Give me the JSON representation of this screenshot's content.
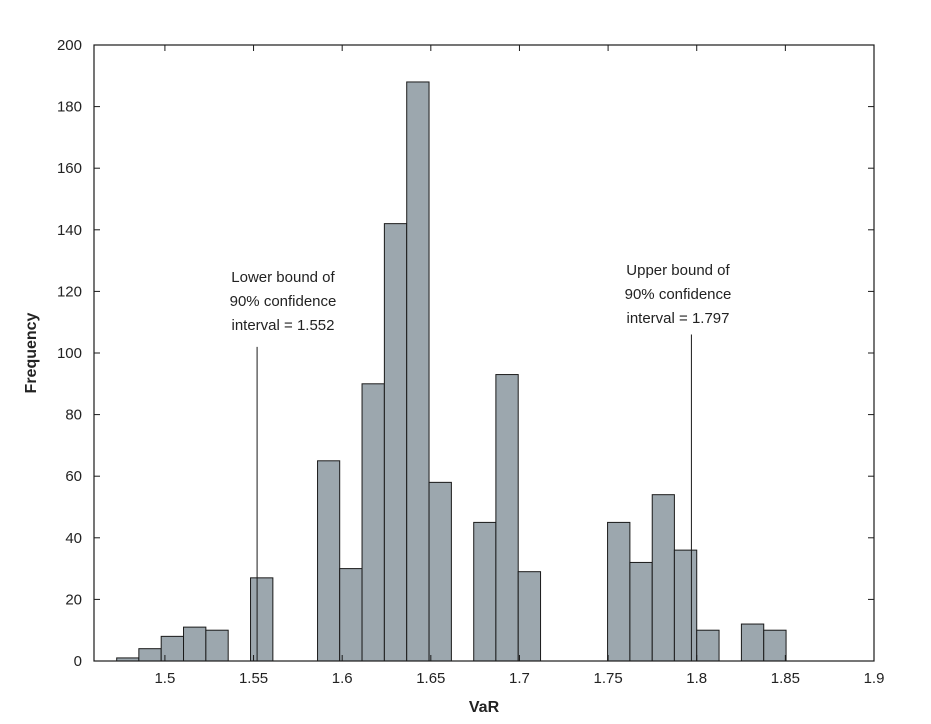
{
  "chart_data": {
    "type": "bar",
    "subtype": "histogram",
    "xlabel": "VaR",
    "ylabel": "Frequency",
    "xlim": [
      1.46,
      1.9
    ],
    "ylim": [
      0,
      200
    ],
    "xticks": [
      1.5,
      1.55,
      1.6,
      1.65,
      1.7,
      1.75,
      1.8,
      1.85,
      1.9
    ],
    "xtick_labels": [
      "1.5",
      "1.55",
      "1.6",
      "1.65",
      "1.7",
      "1.75",
      "1.8",
      "1.85",
      "1.9"
    ],
    "yticks": [
      0,
      20,
      40,
      60,
      80,
      100,
      120,
      140,
      160,
      180,
      200
    ],
    "ytick_labels": [
      "0",
      "20",
      "40",
      "60",
      "80",
      "100",
      "120",
      "140",
      "160",
      "180",
      "200"
    ],
    "bar_color": "#9ca7ae",
    "bins": [
      {
        "x0": 1.4728,
        "x1": 1.4853,
        "value": 1
      },
      {
        "x0": 1.4853,
        "x1": 1.4979,
        "value": 4
      },
      {
        "x0": 1.4979,
        "x1": 1.5105,
        "value": 8
      },
      {
        "x0": 1.5105,
        "x1": 1.5231,
        "value": 11
      },
      {
        "x0": 1.5231,
        "x1": 1.5357,
        "value": 10
      },
      {
        "x0": 1.5357,
        "x1": 1.5483,
        "value": 0
      },
      {
        "x0": 1.5483,
        "x1": 1.5609,
        "value": 27
      },
      {
        "x0": 1.5609,
        "x1": 1.5735,
        "value": 0
      },
      {
        "x0": 1.5735,
        "x1": 1.5861,
        "value": 0
      },
      {
        "x0": 1.5861,
        "x1": 1.5986,
        "value": 65
      },
      {
        "x0": 1.5986,
        "x1": 1.6112,
        "value": 30
      },
      {
        "x0": 1.6112,
        "x1": 1.6238,
        "value": 90
      },
      {
        "x0": 1.6238,
        "x1": 1.6364,
        "value": 142
      },
      {
        "x0": 1.6364,
        "x1": 1.649,
        "value": 188
      },
      {
        "x0": 1.649,
        "x1": 1.6616,
        "value": 58
      },
      {
        "x0": 1.6616,
        "x1": 1.6742,
        "value": 0
      },
      {
        "x0": 1.6742,
        "x1": 1.6867,
        "value": 45
      },
      {
        "x0": 1.6867,
        "x1": 1.6993,
        "value": 93
      },
      {
        "x0": 1.6993,
        "x1": 1.7119,
        "value": 29
      },
      {
        "x0": 1.7119,
        "x1": 1.7245,
        "value": 0
      },
      {
        "x0": 1.7245,
        "x1": 1.7371,
        "value": 0
      },
      {
        "x0": 1.7371,
        "x1": 1.7497,
        "value": 0
      },
      {
        "x0": 1.7497,
        "x1": 1.7623,
        "value": 45
      },
      {
        "x0": 1.7623,
        "x1": 1.7749,
        "value": 32
      },
      {
        "x0": 1.7749,
        "x1": 1.7874,
        "value": 54
      },
      {
        "x0": 1.7874,
        "x1": 1.8,
        "value": 36
      },
      {
        "x0": 1.8,
        "x1": 1.8126,
        "value": 10
      },
      {
        "x0": 1.8126,
        "x1": 1.8252,
        "value": 0
      },
      {
        "x0": 1.8252,
        "x1": 1.8378,
        "value": 12
      },
      {
        "x0": 1.8378,
        "x1": 1.8504,
        "value": 10
      }
    ],
    "annotations": [
      {
        "lines": [
          "Lower bound of",
          "90% confidence",
          "interval = 1.552"
        ],
        "x": 1.552,
        "line_from_y": 0,
        "line_to_y": 102
      },
      {
        "lines": [
          "Upper bound of",
          "90% confidence",
          "interval = 1.797"
        ],
        "x": 1.797,
        "line_from_y": 0,
        "line_to_y": 106
      }
    ]
  }
}
